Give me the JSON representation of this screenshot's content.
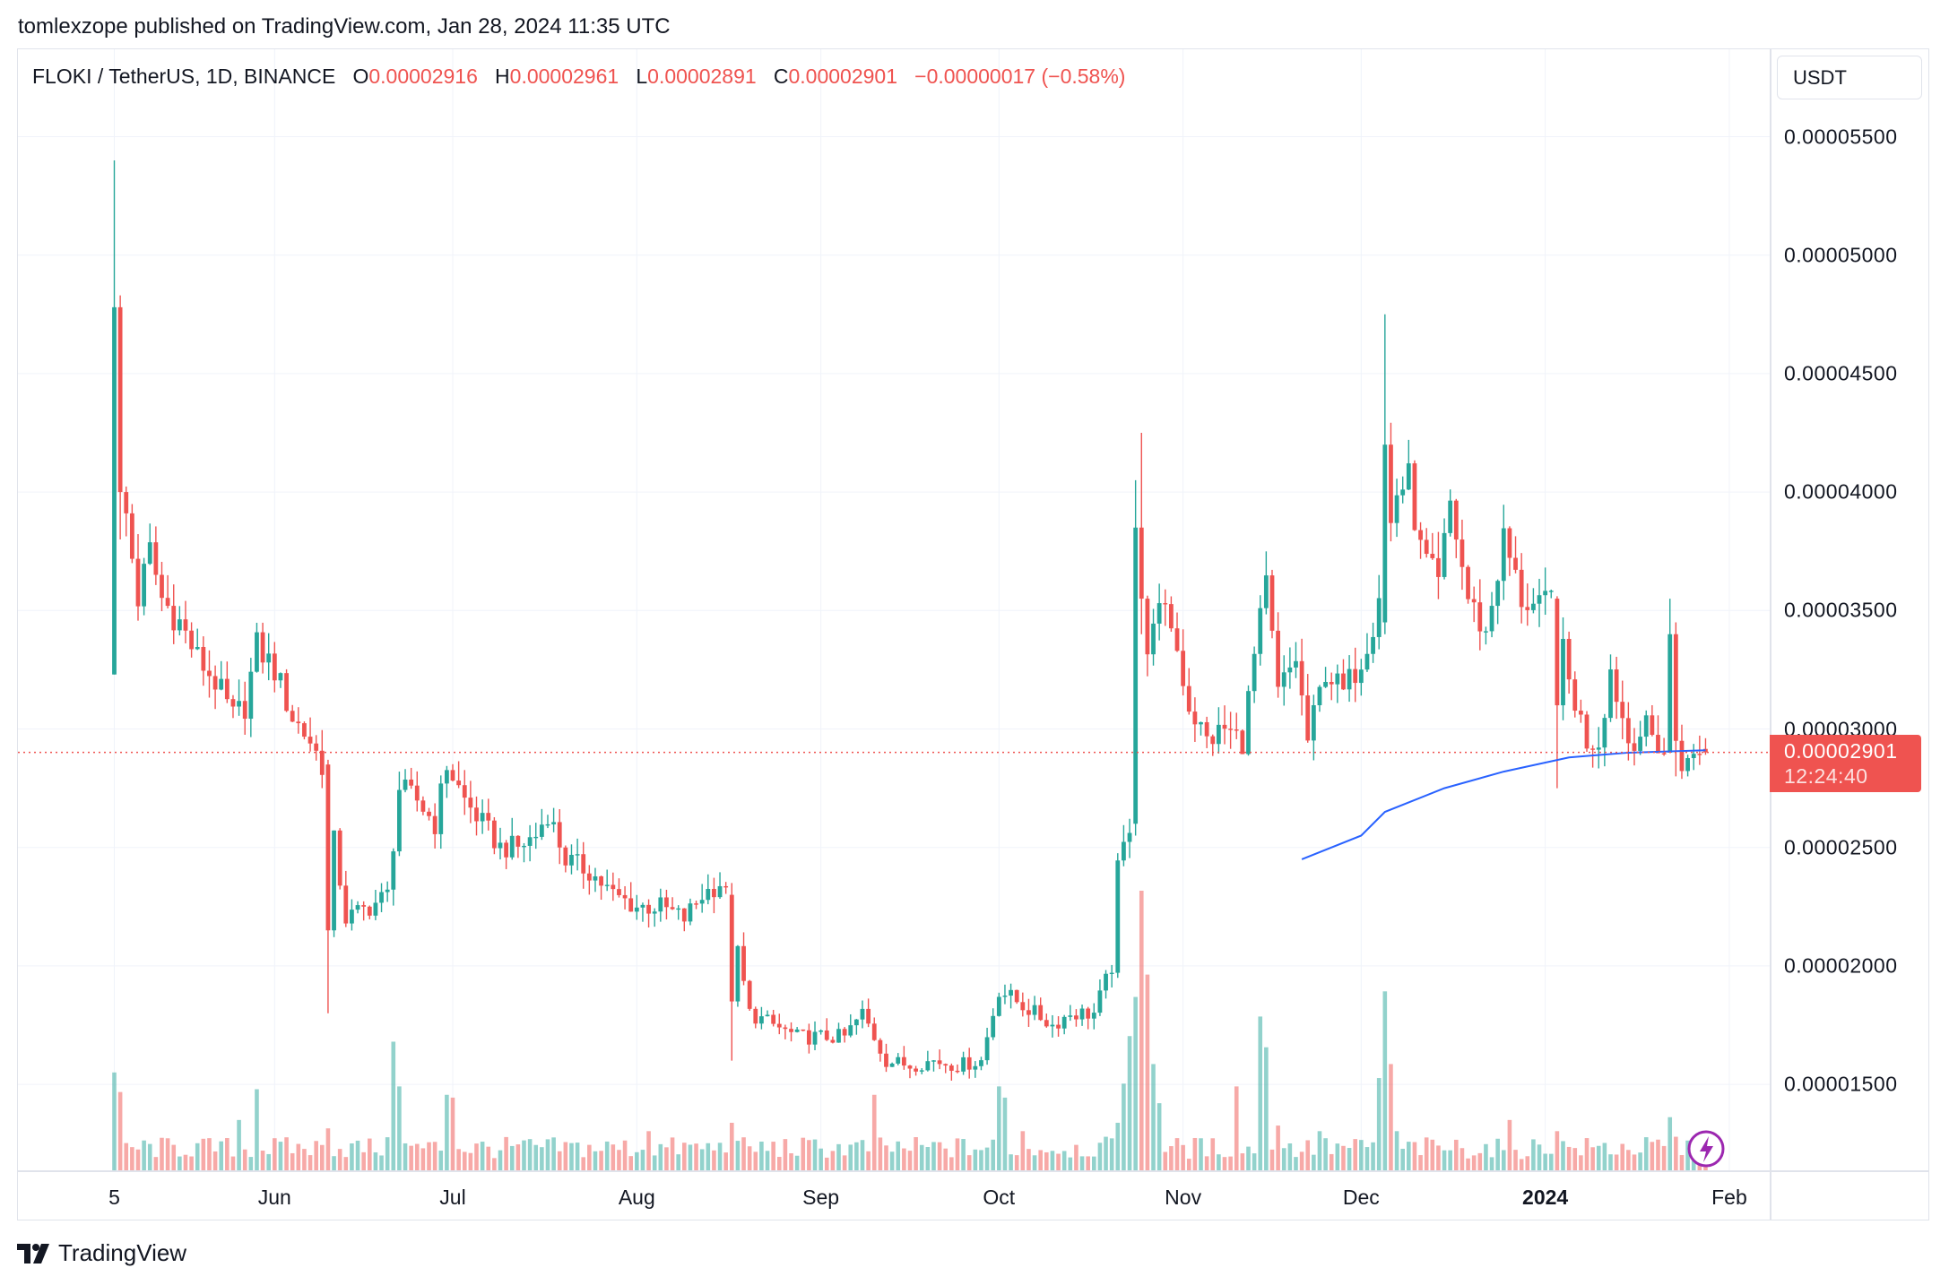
{
  "publisher": "tomlexzope published on TradingView.com, Jan 28, 2024 11:35 UTC",
  "legend": {
    "symbol": "FLOKI / TetherUS, 1D, BINANCE",
    "o_label": "O",
    "o": "0.00002916",
    "h_label": "H",
    "h": "0.00002961",
    "l_label": "L",
    "l": "0.00002891",
    "c_label": "C",
    "c": "0.00002901",
    "change": "−0.00000017 (−0.58%)"
  },
  "currency": "USDT",
  "last_price": {
    "value": "0.00002901",
    "countdown": "12:24:40"
  },
  "brand": "TradingView",
  "colors": {
    "up": "#26a69a",
    "down": "#ef5350",
    "ma": "#2962ff",
    "grid": "#f0f3fa",
    "lightning": "#9c27b0"
  },
  "icons": {
    "logo": "tradingview-logo-icon",
    "alert": "lightning-icon"
  },
  "chart_data": {
    "type": "candlestick",
    "title": "FLOKI / TetherUS, 1D, BINANCE",
    "ylim": [
      1.25e-05,
      5.88e-05
    ],
    "xlim": [
      "2023-05-01",
      "2024-02-08"
    ],
    "grid": true,
    "y_ticks": [
      "0.00005500",
      "0.00005000",
      "0.00004500",
      "0.00004000",
      "0.00003500",
      "0.00003000",
      "0.00002500",
      "0.00002000",
      "0.00001500"
    ],
    "x_ticks": [
      {
        "label": "5",
        "date": "2023-05-05"
      },
      {
        "label": "Jun",
        "date": "2023-06-01"
      },
      {
        "label": "Jul",
        "date": "2023-07-01"
      },
      {
        "label": "Aug",
        "date": "2023-08-01"
      },
      {
        "label": "Sep",
        "date": "2023-09-01"
      },
      {
        "label": "Oct",
        "date": "2023-10-01"
      },
      {
        "label": "Nov",
        "date": "2023-11-01"
      },
      {
        "label": "Dec",
        "date": "2023-12-01"
      },
      {
        "label": "2024",
        "date": "2024-01-01",
        "bold": true
      },
      {
        "label": "Feb",
        "date": "2024-02-01"
      }
    ],
    "start": "2023-05-05",
    "end": "2024-01-28",
    "close_keypoints": [
      [
        "2023-05-07",
        3.9e-05
      ],
      [
        "2023-05-09",
        3.55e-05
      ],
      [
        "2023-05-11",
        3.75e-05
      ],
      [
        "2023-05-13",
        3.55e-05
      ],
      [
        "2023-05-16",
        3.45e-05
      ],
      [
        "2023-05-19",
        3.3e-05
      ],
      [
        "2023-05-22",
        3.2e-05
      ],
      [
        "2023-05-25",
        3.05e-05
      ],
      [
        "2023-05-27",
        3.1e-05
      ],
      [
        "2023-05-29",
        3.35e-05
      ],
      [
        "2023-06-01",
        3.25e-05
      ],
      [
        "2023-06-04",
        3.05e-05
      ],
      [
        "2023-06-07",
        2.95e-05
      ],
      [
        "2023-06-09",
        2.85e-05
      ],
      [
        "2023-06-13",
        2.2e-05
      ],
      [
        "2023-06-17",
        2.25e-05
      ],
      [
        "2023-06-20",
        2.3e-05
      ],
      [
        "2023-06-22",
        2.75e-05
      ],
      [
        "2023-06-25",
        2.7e-05
      ],
      [
        "2023-06-28",
        2.6e-05
      ],
      [
        "2023-06-30",
        2.85e-05
      ],
      [
        "2023-07-03",
        2.7e-05
      ],
      [
        "2023-07-06",
        2.6e-05
      ],
      [
        "2023-07-09",
        2.5e-05
      ],
      [
        "2023-07-12",
        2.5e-05
      ],
      [
        "2023-07-15",
        2.55e-05
      ],
      [
        "2023-07-17",
        2.65e-05
      ],
      [
        "2023-07-20",
        2.45e-05
      ],
      [
        "2023-07-24",
        2.4e-05
      ],
      [
        "2023-07-28",
        2.3e-05
      ],
      [
        "2023-08-01",
        2.25e-05
      ],
      [
        "2023-08-05",
        2.25e-05
      ],
      [
        "2023-08-09",
        2.2e-05
      ],
      [
        "2023-08-12",
        2.3e-05
      ],
      [
        "2023-08-15",
        2.35e-05
      ],
      [
        "2023-08-16",
        2.3e-05
      ],
      [
        "2023-08-20",
        1.8e-05
      ],
      [
        "2023-08-24",
        1.75e-05
      ],
      [
        "2023-08-28",
        1.7e-05
      ],
      [
        "2023-09-01",
        1.7e-05
      ],
      [
        "2023-09-05",
        1.7e-05
      ],
      [
        "2023-09-08",
        1.8e-05
      ],
      [
        "2023-09-10",
        1.7e-05
      ],
      [
        "2023-09-12",
        1.6e-05
      ],
      [
        "2023-09-16",
        1.58e-05
      ],
      [
        "2023-09-20",
        1.6e-05
      ],
      [
        "2023-09-24",
        1.58e-05
      ],
      [
        "2023-09-28",
        1.6e-05
      ],
      [
        "2023-10-01",
        1.9e-05
      ],
      [
        "2023-10-04",
        1.85e-05
      ],
      [
        "2023-10-07",
        1.8e-05
      ],
      [
        "2023-10-10",
        1.75e-05
      ],
      [
        "2023-10-13",
        1.8e-05
      ],
      [
        "2023-10-17",
        1.8e-05
      ],
      [
        "2023-10-20",
        2e-05
      ],
      [
        "2023-10-21",
        2.4e-05
      ],
      [
        "2023-10-23",
        2.6e-05
      ],
      [
        "2023-10-27",
        3.5e-05
      ],
      [
        "2023-10-30",
        3.45e-05
      ],
      [
        "2023-11-02",
        3.1e-05
      ],
      [
        "2023-11-05",
        2.95e-05
      ],
      [
        "2023-11-08",
        3e-05
      ],
      [
        "2023-11-11",
        2.95e-05
      ],
      [
        "2023-11-13",
        3.3e-05
      ],
      [
        "2023-11-15",
        3.6e-05
      ],
      [
        "2023-11-17",
        3.15e-05
      ],
      [
        "2023-11-20",
        3.3e-05
      ],
      [
        "2023-11-22",
        2.95e-05
      ],
      [
        "2023-11-25",
        3.25e-05
      ],
      [
        "2023-11-28",
        3.15e-05
      ],
      [
        "2023-12-01",
        3.3e-05
      ],
      [
        "2023-12-03",
        3.45e-05
      ],
      [
        "2023-12-07",
        4e-05
      ],
      [
        "2023-12-09",
        4.05e-05
      ],
      [
        "2023-12-11",
        3.75e-05
      ],
      [
        "2023-12-14",
        3.6e-05
      ],
      [
        "2023-12-16",
        3.95e-05
      ],
      [
        "2023-12-19",
        3.55e-05
      ],
      [
        "2023-12-22",
        3.4e-05
      ],
      [
        "2023-12-25",
        3.8e-05
      ],
      [
        "2023-12-28",
        3.55e-05
      ],
      [
        "2023-12-31",
        3.5e-05
      ],
      [
        "2024-01-02",
        3.55e-05
      ],
      [
        "2024-01-05",
        3.2e-05
      ],
      [
        "2024-01-08",
        2.95e-05
      ],
      [
        "2024-01-10",
        2.95e-05
      ],
      [
        "2024-01-12",
        3.25e-05
      ],
      [
        "2024-01-15",
        2.95e-05
      ],
      [
        "2024-01-18",
        3e-05
      ],
      [
        "2024-01-21",
        2.9e-05
      ],
      [
        "2024-01-25",
        2.85e-05
      ],
      [
        "2024-01-27",
        2.916e-05
      ]
    ],
    "candles": [
      {
        "date": "2023-05-05",
        "o": 3.23e-05,
        "h": 5.4e-05,
        "l": 3.23e-05,
        "c": 4.78e-05
      },
      {
        "date": "2023-05-06",
        "o": 4.78e-05,
        "h": 4.83e-05,
        "l": 3.8e-05,
        "c": 4e-05
      },
      {
        "date": "2023-06-10",
        "o": 2.85e-05,
        "h": 2.87e-05,
        "l": 1.8e-05,
        "c": 2.15e-05
      },
      {
        "date": "2023-08-17",
        "o": 2.3e-05,
        "h": 2.35e-05,
        "l": 1.6e-05,
        "c": 1.85e-05
      },
      {
        "date": "2023-10-24",
        "o": 2.6e-05,
        "h": 4.05e-05,
        "l": 2.55e-05,
        "c": 3.85e-05
      },
      {
        "date": "2023-10-25",
        "o": 3.85e-05,
        "h": 4.25e-05,
        "l": 3.4e-05,
        "c": 3.55e-05
      },
      {
        "date": "2023-12-05",
        "o": 3.45e-05,
        "h": 4.75e-05,
        "l": 3.4e-05,
        "c": 4.2e-05
      },
      {
        "date": "2024-01-03",
        "o": 3.55e-05,
        "h": 3.56e-05,
        "l": 2.75e-05,
        "c": 3.1e-05
      },
      {
        "date": "2024-01-22",
        "o": 2.9e-05,
        "h": 3.55e-05,
        "l": 2.9e-05,
        "c": 3.4e-05
      },
      {
        "date": "2024-01-23",
        "o": 3.4e-05,
        "h": 3.45e-05,
        "l": 2.8e-05,
        "c": 2.95e-05
      },
      {
        "date": "2024-01-28",
        "o": 2.916e-05,
        "h": 2.961e-05,
        "l": 2.891e-05,
        "c": 2.901e-05
      }
    ],
    "volume_relative_spikes": [
      [
        "2023-05-05",
        0.35
      ],
      [
        "2023-05-06",
        0.28
      ],
      [
        "2023-05-29",
        0.29
      ],
      [
        "2023-05-26",
        0.18
      ],
      [
        "2023-06-10",
        0.15
      ],
      [
        "2023-06-21",
        0.46
      ],
      [
        "2023-06-22",
        0.3
      ],
      [
        "2023-06-30",
        0.27
      ],
      [
        "2023-07-01",
        0.26
      ],
      [
        "2023-08-17",
        0.17
      ],
      [
        "2023-08-03",
        0.14
      ],
      [
        "2023-09-10",
        0.27
      ],
      [
        "2023-10-01",
        0.3
      ],
      [
        "2023-10-02",
        0.26
      ],
      [
        "2023-10-05",
        0.14
      ],
      [
        "2023-10-21",
        0.17
      ],
      [
        "2023-10-22",
        0.31
      ],
      [
        "2023-10-23",
        0.48
      ],
      [
        "2023-10-24",
        0.62
      ],
      [
        "2023-10-25",
        1.0
      ],
      [
        "2023-10-26",
        0.7
      ],
      [
        "2023-10-27",
        0.38
      ],
      [
        "2023-10-28",
        0.24
      ],
      [
        "2023-11-10",
        0.3
      ],
      [
        "2023-11-14",
        0.55
      ],
      [
        "2023-11-15",
        0.44
      ],
      [
        "2023-11-17",
        0.16
      ],
      [
        "2023-11-24",
        0.14
      ],
      [
        "2023-12-04",
        0.33
      ],
      [
        "2023-12-05",
        0.64
      ],
      [
        "2023-12-06",
        0.38
      ],
      [
        "2023-12-07",
        0.14
      ],
      [
        "2023-12-26",
        0.18
      ],
      [
        "2024-01-03",
        0.14
      ],
      [
        "2024-01-22",
        0.19
      ],
      [
        "2024-01-23",
        0.12
      ]
    ],
    "moving_average": [
      [
        "2023-11-21",
        2.45e-05
      ],
      [
        "2023-12-01",
        2.55e-05
      ],
      [
        "2023-12-05",
        2.65e-05
      ],
      [
        "2023-12-15",
        2.75e-05
      ],
      [
        "2023-12-25",
        2.82e-05
      ],
      [
        "2024-01-05",
        2.88e-05
      ],
      [
        "2024-01-15",
        2.9e-05
      ],
      [
        "2024-01-28",
        2.91e-05
      ]
    ]
  }
}
